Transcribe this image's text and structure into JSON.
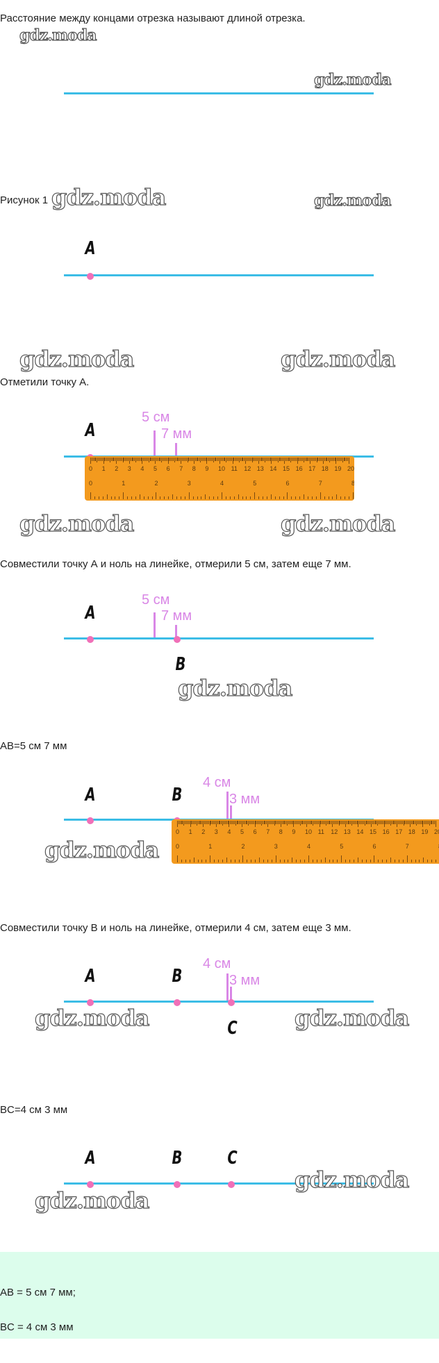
{
  "texts": {
    "definition": "Расстояние между концами отрезка называют длиной отрезка.",
    "figure_caption": "Рисунок 1",
    "step1": "Отметили точку А.",
    "step2": "Совместили точку А и ноль на линейке, отмерили 5 см, затем еще 7 мм.",
    "ab_result": "AB=5 см 7 мм",
    "step3": "Совместили точку B и ноль на линейке, отмерили 4 см, затем еще 3 мм.",
    "bc_result": "BC=4 см 3 мм"
  },
  "labels": {
    "A": "A",
    "B": "B",
    "C": "C"
  },
  "measures": {
    "cm5": "5 см",
    "mm7": "7 мм",
    "cm4": "4 см",
    "mm3": "3 мм"
  },
  "watermark": "gdz.moda",
  "answer": {
    "line1": "AB = 5 см 7 мм;",
    "line2": "BC = 4 см 3 мм"
  },
  "colors": {
    "segment": "#3cbde6",
    "point": "#f070b8",
    "measure": "#d987e6",
    "ruler": "#f39a1e",
    "answer_bg": "#dcfdec"
  }
}
